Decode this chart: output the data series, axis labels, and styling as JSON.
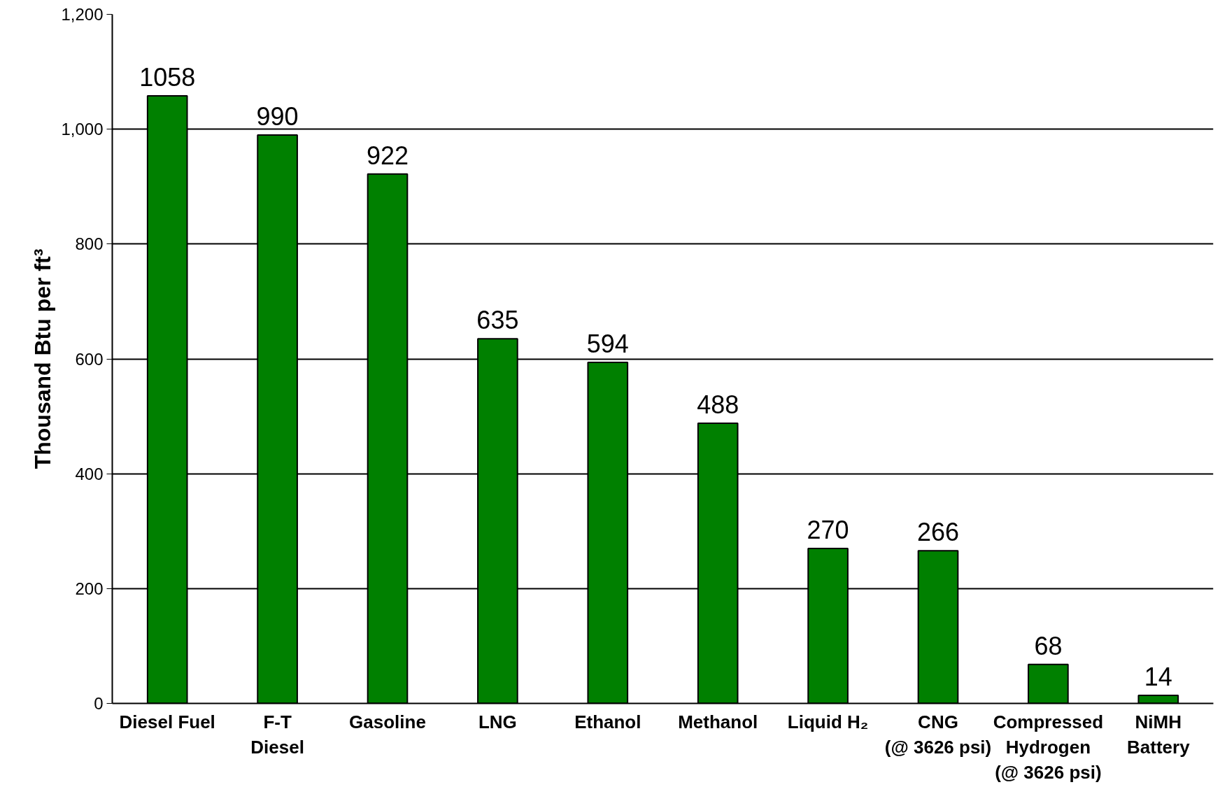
{
  "chart_data": {
    "type": "bar",
    "ylabel": "Thousand Btu per ft³",
    "categories": [
      "Diesel Fuel",
      "F-T\nDiesel",
      "Gasoline",
      "LNG",
      "Ethanol",
      "Methanol",
      "Liquid H₂",
      "CNG\n(@ 3626 psi)",
      "Compressed\nHydrogen\n(@ 3626 psi)",
      "NiMH\nBattery"
    ],
    "values": [
      1058,
      990,
      922,
      635,
      594,
      488,
      270,
      266,
      68,
      14
    ],
    "color": "#008000",
    "data_labels": true,
    "ylim": [
      0,
      1200
    ],
    "yticks": [
      {
        "value": 0,
        "label": "0"
      },
      {
        "value": 200,
        "label": "200"
      },
      {
        "value": 400,
        "label": "400"
      },
      {
        "value": 600,
        "label": "600"
      },
      {
        "value": 800,
        "label": "800"
      },
      {
        "value": 1000,
        "label": "1,000"
      },
      {
        "value": 1200,
        "label": "1,200"
      }
    ],
    "grid": "y"
  }
}
